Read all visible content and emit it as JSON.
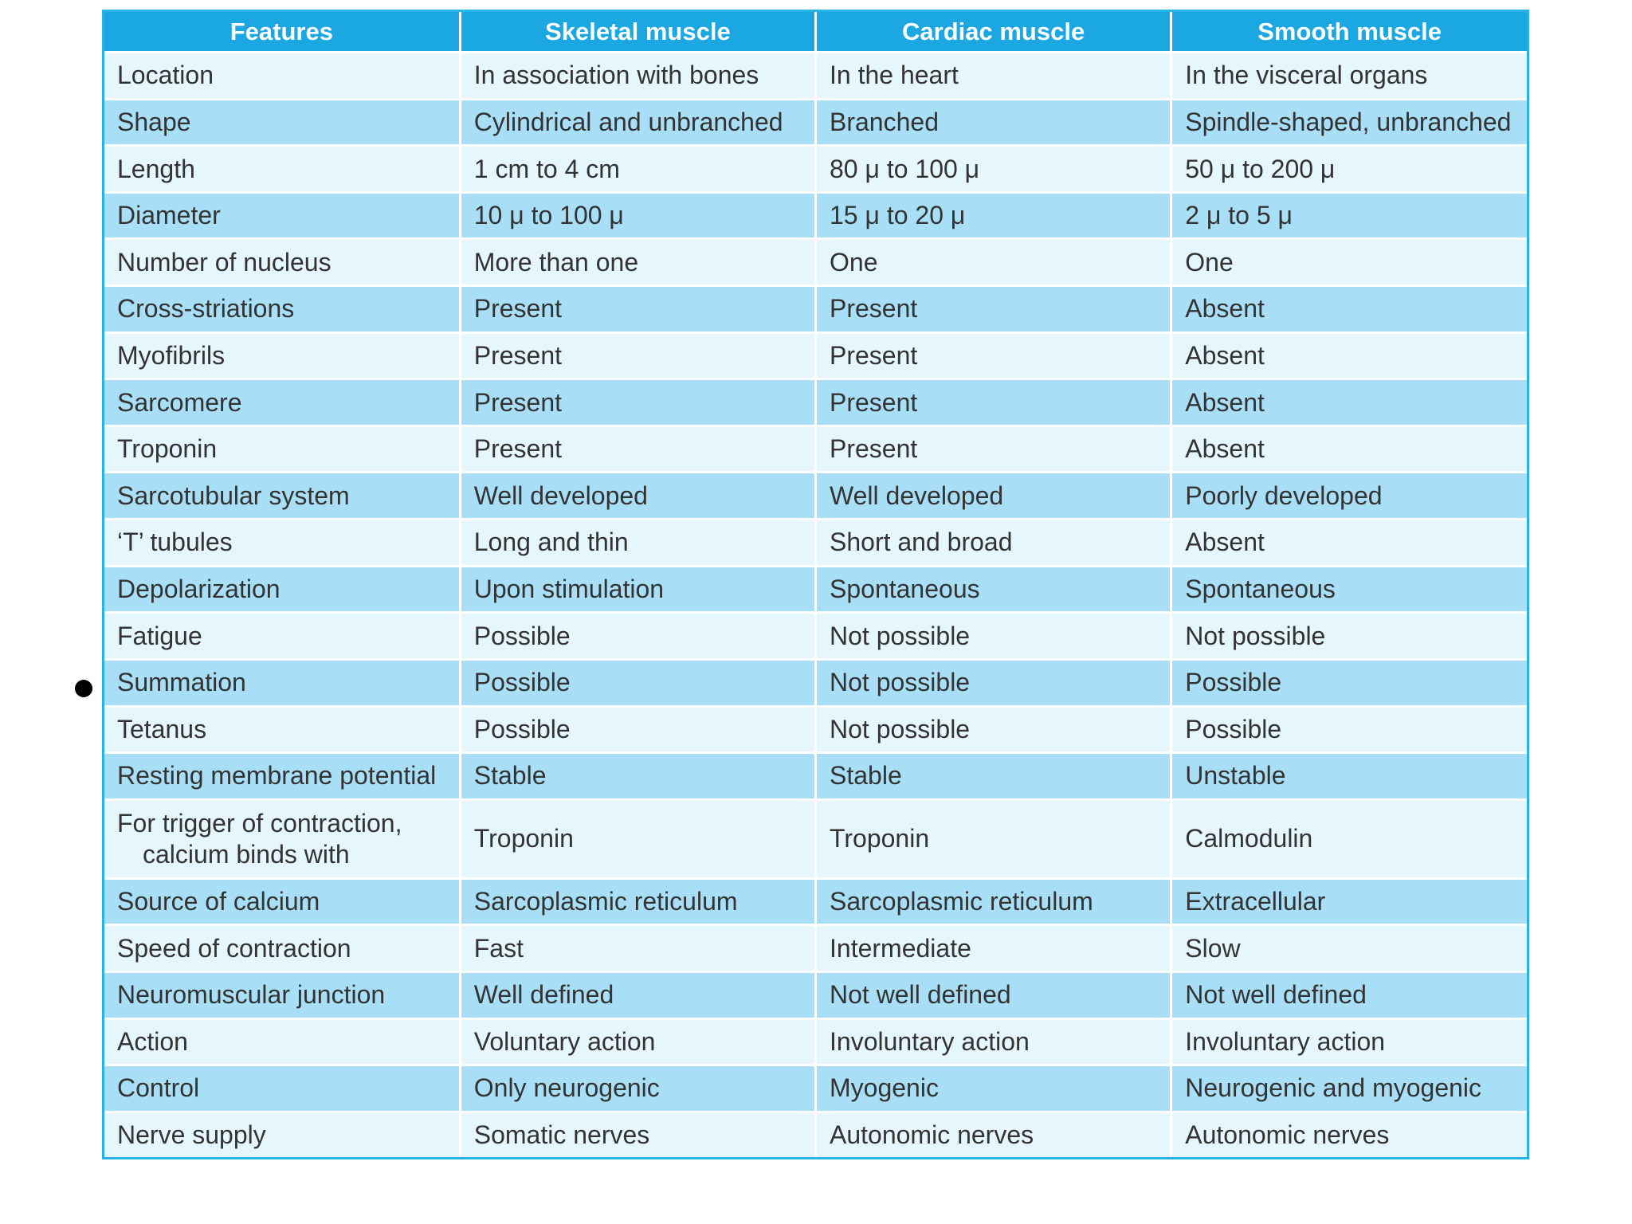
{
  "table": {
    "headers": [
      "Features",
      "Skeletal muscle",
      "Cardiac muscle",
      "Smooth muscle"
    ],
    "rows": [
      {
        "feature": "Location",
        "skeletal": "In association with bones",
        "cardiac": "In the heart",
        "smooth": "In the visceral organs"
      },
      {
        "feature": "Shape",
        "skeletal": "Cylindrical and  unbranched",
        "cardiac": "Branched",
        "smooth": "Spindle-shaped, unbranched"
      },
      {
        "feature": "Length",
        "skeletal": "1 cm to 4 cm",
        "cardiac": "80 μ to 100 μ",
        "smooth": "50 μ to 200 μ"
      },
      {
        "feature": "Diameter",
        "skeletal": "10 μ to 100 μ",
        "cardiac": "15 μ to 20 μ",
        "smooth": "2 μ to 5 μ"
      },
      {
        "feature": "Number of nucleus",
        "skeletal": "More than one",
        "cardiac": "One",
        "smooth": "One"
      },
      {
        "feature": "Cross-striations",
        "skeletal": "Present",
        "cardiac": "Present",
        "smooth": "Absent"
      },
      {
        "feature": "Myofibrils",
        "skeletal": "Present",
        "cardiac": "Present",
        "smooth": "Absent"
      },
      {
        "feature": "Sarcomere",
        "skeletal": "Present",
        "cardiac": "Present",
        "smooth": "Absent"
      },
      {
        "feature": "Troponin",
        "skeletal": "Present",
        "cardiac": "Present",
        "smooth": "Absent"
      },
      {
        "feature": "Sarcotubular system",
        "skeletal": "Well developed",
        "cardiac": "Well developed",
        "smooth": "Poorly developed"
      },
      {
        "feature": "‘T’ tubules",
        "skeletal": "Long and thin",
        "cardiac": "Short and broad",
        "smooth": "Absent"
      },
      {
        "feature": "Depolarization",
        "skeletal": "Upon stimulation",
        "cardiac": "Spontaneous",
        "smooth": "Spontaneous"
      },
      {
        "feature": "Fatigue",
        "skeletal": "Possible",
        "cardiac": "Not possible",
        "smooth": "Not possible"
      },
      {
        "feature": "Summation",
        "skeletal": "Possible",
        "cardiac": "Not possible",
        "smooth": "Possible"
      },
      {
        "feature": "Tetanus",
        "skeletal": "Possible",
        "cardiac": "Not possible",
        "smooth": "Possible"
      },
      {
        "feature": "Resting membrane potential",
        "skeletal": "Stable",
        "cardiac": "Stable",
        "smooth": "Unstable"
      },
      {
        "feature_line1": "For trigger of contraction,",
        "feature_line2": "calcium binds with",
        "skeletal": "Troponin",
        "cardiac": "Troponin",
        "smooth": "Calmodulin"
      },
      {
        "feature": "Source of calcium",
        "skeletal": "Sarcoplasmic reticulum",
        "cardiac": "Sarcoplasmic reticulum",
        "smooth": "Extracellular"
      },
      {
        "feature": "Speed of contraction",
        "skeletal": "Fast",
        "cardiac": "Intermediate",
        "smooth": "Slow"
      },
      {
        "feature": "Neuromuscular junction",
        "skeletal": "Well defined",
        "cardiac": "Not well defined",
        "smooth": "Not well defined"
      },
      {
        "feature": "Action",
        "skeletal": "Voluntary action",
        "cardiac": "Involuntary action",
        "smooth": "Involuntary action"
      },
      {
        "feature": "Control",
        "skeletal": "Only neurogenic",
        "cardiac": "Myogenic",
        "smooth": "Neurogenic and myogenic"
      },
      {
        "feature": "Nerve supply",
        "skeletal": "Somatic nerves",
        "cardiac": "Autonomic nerves",
        "smooth": "Autonomic nerves"
      }
    ]
  },
  "colors": {
    "header_bg": "#1aa7e2",
    "row_light": "#e6f6fd",
    "row_dark": "#a8dff6",
    "border": "#25b3e8"
  }
}
